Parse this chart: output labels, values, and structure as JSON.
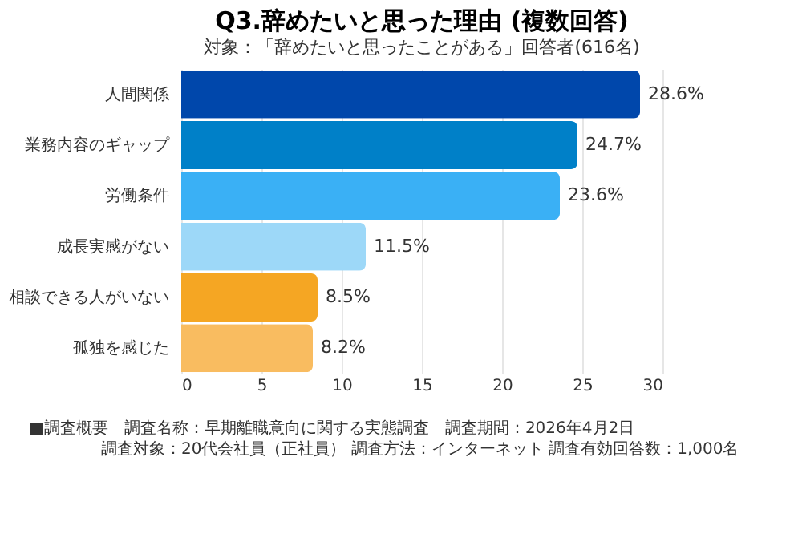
{
  "chart_data": {
    "type": "bar",
    "orientation": "horizontal",
    "title": "Q3.辞めたいと思った理由 (複数回答)",
    "subtitle": "対象：「辞めたいと思ったことがある」回答者(616名)",
    "categories": [
      "人間関係",
      "業務内容のギャップ",
      "労働条件",
      "成長実感がない",
      "相談できる人がいない",
      "孤独を感じた"
    ],
    "values": [
      28.6,
      24.7,
      23.6,
      11.5,
      8.5,
      8.2
    ],
    "colors": [
      "#0047ab",
      "#0080c8",
      "#3ab0f5",
      "#9dd8f8",
      "#f5a623",
      "#f9bc60"
    ],
    "value_labels": [
      "28.6%",
      "24.7%",
      "23.6%",
      "11.5%",
      "8.5%",
      "8.2%"
    ],
    "xlim": [
      0,
      30
    ],
    "xticks": [
      0,
      5,
      10,
      15,
      20,
      25,
      30
    ],
    "grid": "x",
    "legend": false,
    "annotations": [
      "■調査概要　調査名称：早期離職意向に関する実態調査　調査期間：2026年4月2日",
      "調査対象：20代会社員（正社員） 調査方法：インターネット 調査有効回答数：1,000名"
    ]
  }
}
